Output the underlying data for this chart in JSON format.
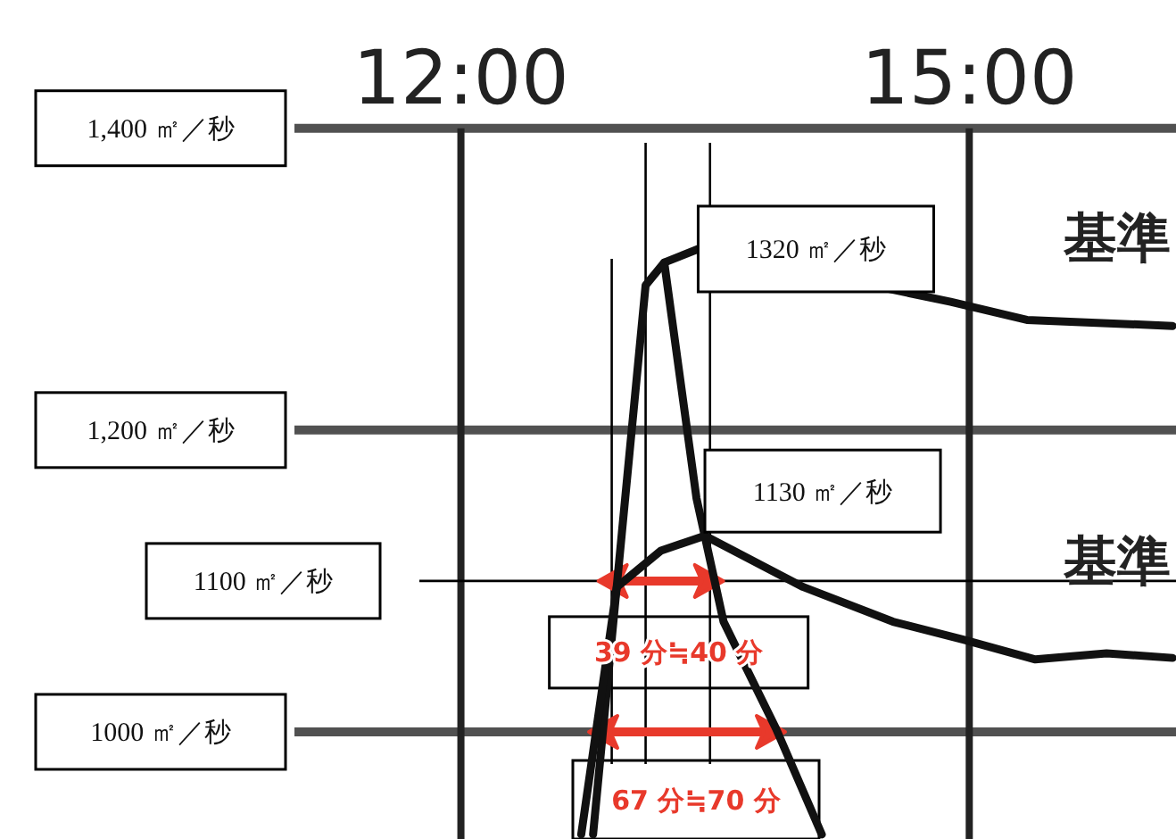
{
  "chart_data": {
    "type": "line",
    "xlim": [
      9.28,
      16.22
    ],
    "ylim": [
      929,
      1485
    ],
    "xticks": [
      {
        "value": 12,
        "label": "12:00"
      },
      {
        "value": 15,
        "label": "15:00"
      }
    ],
    "yticks": [
      {
        "value": 1000,
        "label": "1000 ㎡／秒"
      },
      {
        "value": 1200,
        "label": "1,200 ㎡／秒"
      },
      {
        "value": 1400,
        "label": "1,400 ㎡／秒"
      }
    ],
    "grid": true,
    "line_style": "solid",
    "marker": "none",
    "series": [
      {
        "color": "#111111",
        "x": [
          12.78,
          12.95,
          13.09,
          13.2,
          13.4,
          14.89,
          15.34,
          16.2
        ],
        "values": [
          932,
          1132,
          1296,
          1311,
          1320,
          1285,
          1273,
          1269
        ]
      },
      {
        "color": "#111111",
        "x": [
          13.2,
          13.39,
          13.55,
          13.86,
          14.13
        ],
        "values": [
          1311,
          1155,
          1073,
          1002,
          932
        ]
      },
      {
        "color": "#111111",
        "x": [
          12.71,
          12.92,
          13.18,
          13.44,
          14.02,
          14.55,
          14.97,
          15.39,
          15.81,
          16.2
        ],
        "values": [
          932,
          1096,
          1120,
          1130,
          1096,
          1073,
          1061,
          1048,
          1052,
          1049
        ]
      }
    ],
    "ref_lines": [
      {
        "axis": "y",
        "value": 1100,
        "label": "1100 ㎡／秒",
        "color": "#000000"
      },
      {
        "axis": "x",
        "value": 12.89,
        "color": "#000000"
      },
      {
        "axis": "x",
        "value": 13.09,
        "color": "#000000"
      },
      {
        "axis": "x",
        "value": 13.47,
        "color": "#000000"
      }
    ],
    "annotations": [
      {
        "text": "1320 ㎡／秒",
        "x": 13.4,
        "y": 1320
      },
      {
        "text": "1130 ㎡／秒",
        "x": 13.44,
        "y": 1130
      },
      {
        "text": "39 分≒40 分",
        "x": 13.18,
        "y": 1100
      },
      "67 分≒70 分",
      "基準",
      "基準"
    ]
  }
}
